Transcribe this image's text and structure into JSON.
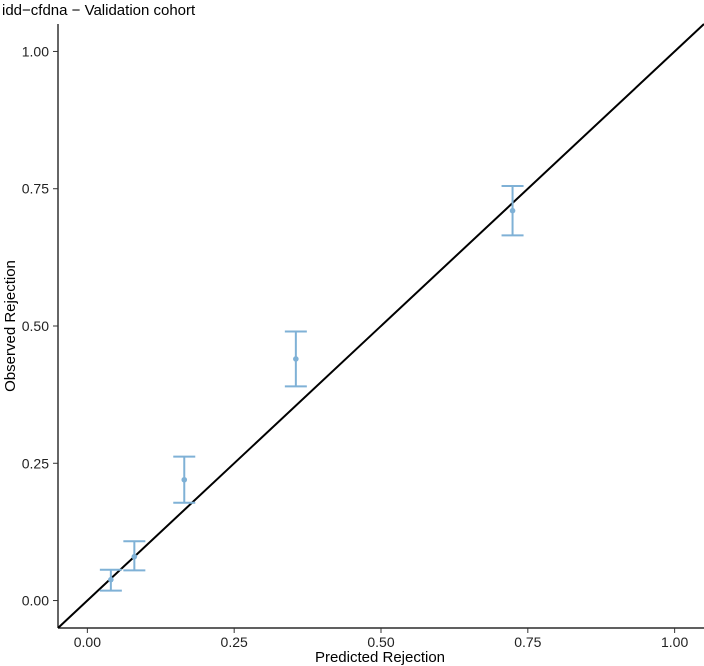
{
  "chart_data": {
    "type": "scatter",
    "title": "idd−cfdna − Validation cohort",
    "xlabel": "Predicted Rejection",
    "ylabel": "Observed Rejection",
    "xlim": [
      -0.05,
      1.05
    ],
    "ylim": [
      -0.05,
      1.05
    ],
    "x_ticks": [
      0,
      0.25,
      0.5,
      0.75,
      1
    ],
    "x_tick_labels": [
      "0.00",
      "0.25",
      "0.50",
      "0.75",
      "1.00"
    ],
    "y_ticks": [
      0,
      0.25,
      0.5,
      0.75,
      1
    ],
    "y_tick_labels": [
      "0.00",
      "0.25",
      "0.50",
      "0.75",
      "1.00"
    ],
    "grid": false,
    "reference_line": {
      "type": "identity",
      "color": "#000000"
    },
    "points": [
      {
        "x": 0.04,
        "y": 0.038,
        "lower": 0.018,
        "upper": 0.056
      },
      {
        "x": 0.08,
        "y": 0.08,
        "lower": 0.055,
        "upper": 0.108
      },
      {
        "x": 0.165,
        "y": 0.22,
        "lower": 0.178,
        "upper": 0.262
      },
      {
        "x": 0.355,
        "y": 0.44,
        "lower": 0.39,
        "upper": 0.49
      },
      {
        "x": 0.724,
        "y": 0.71,
        "lower": 0.665,
        "upper": 0.755
      }
    ],
    "point_color": "#7fb1d6"
  }
}
